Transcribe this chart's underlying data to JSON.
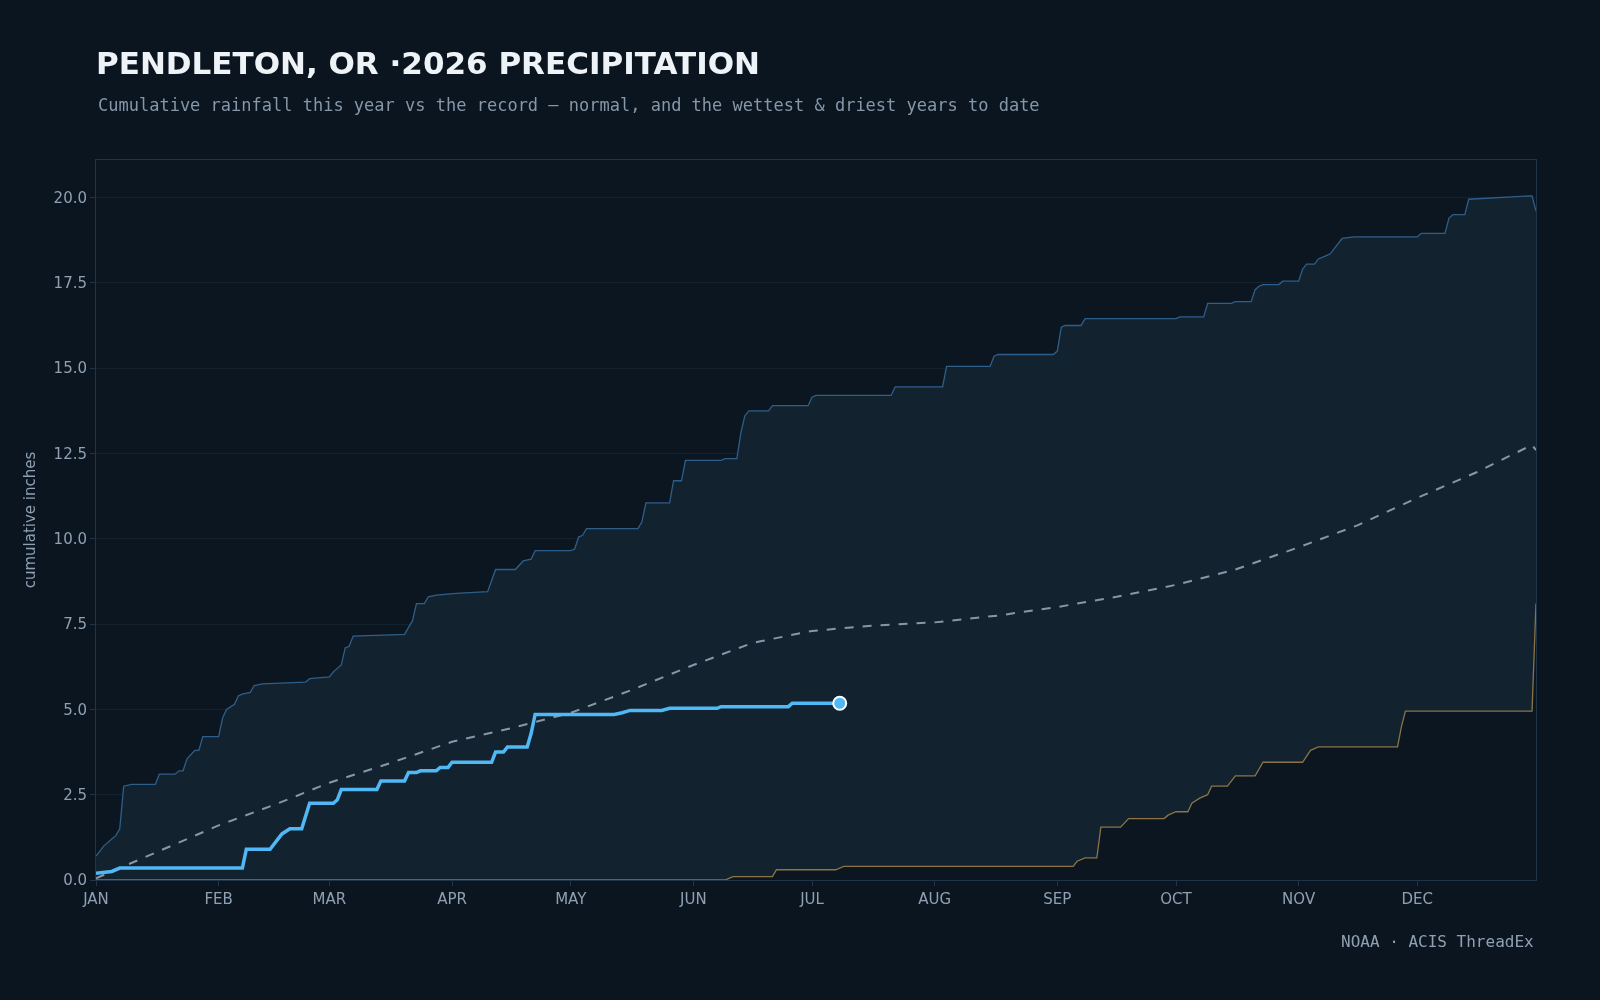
{
  "chart_data": {
    "type": "line",
    "title": "PENDLETON, OR ·2026 PRECIPITATION",
    "subtitle": "Cumulative rainfall this year vs the record — normal, and the wettest & driest years to date",
    "ylabel": "cumulative inches",
    "annotations": [
      "NOAA · ACIS ThreadEx"
    ],
    "xlim": [
      "2026-01-01",
      "2026-12-31"
    ],
    "xticks": [
      {
        "value": "2026-01-01",
        "label": "JAN"
      },
      {
        "value": "2026-02-01",
        "label": "FEB"
      },
      {
        "value": "2026-03-01",
        "label": "MAR"
      },
      {
        "value": "2026-04-01",
        "label": "APR"
      },
      {
        "value": "2026-05-01",
        "label": "MAY"
      },
      {
        "value": "2026-06-01",
        "label": "JUN"
      },
      {
        "value": "2026-07-01",
        "label": "JUL"
      },
      {
        "value": "2026-08-01",
        "label": "AUG"
      },
      {
        "value": "2026-09-01",
        "label": "SEP"
      },
      {
        "value": "2026-10-01",
        "label": "OCT"
      },
      {
        "value": "2026-11-01",
        "label": "NOV"
      },
      {
        "value": "2026-12-01",
        "label": "DEC"
      }
    ],
    "ylim": [
      0,
      21.1
    ],
    "yticks": [
      {
        "value": 0,
        "label": "0.0"
      },
      {
        "value": 2.5,
        "label": "2.5"
      },
      {
        "value": 5,
        "label": "5.0"
      },
      {
        "value": 7.5,
        "label": "7.5"
      },
      {
        "value": 10,
        "label": "10.0"
      },
      {
        "value": 12.5,
        "label": "12.5"
      },
      {
        "value": 15,
        "label": "15.0"
      },
      {
        "value": 17.5,
        "label": "17.5"
      },
      {
        "value": 20,
        "label": "20.0"
      }
    ],
    "grid": "y",
    "series": [
      {
        "type": "area",
        "color": "#8a7448",
        "line_style": "solid",
        "x": [
          "2026-01-01",
          "2026-06-09",
          "2026-06-10",
          "2026-06-11",
          "2026-06-21",
          "2026-06-22",
          "2026-07-07",
          "2026-07-09",
          "2026-09-05",
          "2026-09-06",
          "2026-09-08",
          "2026-09-11",
          "2026-09-12",
          "2026-09-17",
          "2026-09-19",
          "2026-09-28",
          "2026-09-29",
          "2026-10-01",
          "2026-10-04",
          "2026-10-05",
          "2026-10-07",
          "2026-10-09",
          "2026-10-10",
          "2026-10-14",
          "2026-10-16",
          "2026-10-21",
          "2026-10-23",
          "2026-11-02",
          "2026-11-04",
          "2026-11-06",
          "2026-11-26",
          "2026-11-27",
          "2026-11-28",
          "2026-12-30",
          "2026-12-31"
        ],
        "values": [
          0,
          0,
          0.05,
          0.1,
          0.1,
          0.3,
          0.3,
          0.4,
          0.4,
          0.55,
          0.65,
          0.65,
          1.55,
          1.55,
          1.8,
          1.8,
          1.9,
          2.0,
          2.0,
          2.25,
          2.4,
          2.5,
          2.75,
          2.75,
          3.05,
          3.05,
          3.45,
          3.45,
          3.8,
          3.9,
          3.9,
          4.5,
          4.95,
          4.95,
          8.1
        ]
      },
      {
        "type": "area",
        "color": "#2e5f8a",
        "line_style": "solid",
        "x": [
          "2026-01-01",
          "2026-01-03",
          "2026-01-05",
          "2026-01-06",
          "2026-01-07",
          "2026-01-08",
          "2026-01-10",
          "2026-01-16",
          "2026-01-17",
          "2026-01-21",
          "2026-01-22",
          "2026-01-23",
          "2026-01-24",
          "2026-01-26",
          "2026-01-27",
          "2026-01-28",
          "2026-02-01",
          "2026-02-02",
          "2026-02-03",
          "2026-02-05",
          "2026-02-06",
          "2026-02-07",
          "2026-02-09",
          "2026-02-10",
          "2026-02-12",
          "2026-02-23",
          "2026-02-24",
          "2026-03-01",
          "2026-03-02",
          "2026-03-04",
          "2026-03-05",
          "2026-03-06",
          "2026-03-07",
          "2026-03-20",
          "2026-03-22",
          "2026-03-23",
          "2026-03-25",
          "2026-03-26",
          "2026-03-28",
          "2026-04-02",
          "2026-04-10",
          "2026-04-12",
          "2026-04-17",
          "2026-04-19",
          "2026-04-21",
          "2026-04-22",
          "2026-05-01",
          "2026-05-02",
          "2026-05-03",
          "2026-05-04",
          "2026-05-05",
          "2026-05-18",
          "2026-05-19",
          "2026-05-20",
          "2026-05-26",
          "2026-05-27",
          "2026-05-29",
          "2026-05-30",
          "2026-06-08",
          "2026-06-09",
          "2026-06-12",
          "2026-06-13",
          "2026-06-14",
          "2026-06-15",
          "2026-06-20",
          "2026-06-21",
          "2026-06-30",
          "2026-07-01",
          "2026-07-02",
          "2026-07-21",
          "2026-07-22",
          "2026-08-03",
          "2026-08-04",
          "2026-08-15",
          "2026-08-16",
          "2026-08-17",
          "2026-08-31",
          "2026-09-01",
          "2026-09-02",
          "2026-09-03",
          "2026-09-07",
          "2026-09-08",
          "2026-10-01",
          "2026-10-02",
          "2026-10-08",
          "2026-10-09",
          "2026-10-15",
          "2026-10-16",
          "2026-10-20",
          "2026-10-21",
          "2026-10-22",
          "2026-10-23",
          "2026-10-27",
          "2026-10-28",
          "2026-11-01",
          "2026-11-02",
          "2026-11-03",
          "2026-11-05",
          "2026-11-06",
          "2026-11-08",
          "2026-11-09",
          "2026-11-10",
          "2026-11-12",
          "2026-11-15",
          "2026-12-01",
          "2026-12-02",
          "2026-12-08",
          "2026-12-09",
          "2026-12-10",
          "2026-12-13",
          "2026-12-14",
          "2026-12-30",
          "2026-12-31"
        ],
        "values": [
          0.7,
          1.0,
          1.2,
          1.3,
          1.5,
          2.75,
          2.8,
          2.8,
          3.1,
          3.1,
          3.2,
          3.2,
          3.55,
          3.8,
          3.8,
          4.2,
          4.2,
          4.75,
          5.0,
          5.15,
          5.4,
          5.45,
          5.5,
          5.7,
          5.75,
          5.8,
          5.9,
          5.95,
          6.1,
          6.3,
          6.8,
          6.85,
          7.15,
          7.2,
          7.6,
          8.1,
          8.1,
          8.3,
          8.35,
          8.4,
          8.45,
          9.1,
          9.1,
          9.35,
          9.4,
          9.65,
          9.65,
          9.7,
          10.05,
          10.1,
          10.3,
          10.3,
          10.5,
          11.05,
          11.05,
          11.7,
          11.7,
          12.3,
          12.3,
          12.35,
          12.35,
          13.1,
          13.6,
          13.75,
          13.75,
          13.9,
          13.9,
          14.15,
          14.2,
          14.2,
          14.45,
          14.45,
          15.05,
          15.05,
          15.35,
          15.4,
          15.4,
          15.5,
          16.2,
          16.25,
          16.25,
          16.45,
          16.45,
          16.5,
          16.5,
          16.9,
          16.9,
          16.95,
          16.95,
          17.3,
          17.4,
          17.45,
          17.45,
          17.55,
          17.55,
          17.9,
          18.05,
          18.05,
          18.2,
          18.3,
          18.35,
          18.5,
          18.8,
          18.85,
          18.85,
          18.95,
          18.95,
          19.4,
          19.5,
          19.5,
          19.95,
          20.05,
          19.6
        ]
      },
      {
        "color": "#8797a8",
        "line_style": "dashed",
        "x": [
          "2026-01-01",
          "2026-01-16",
          "2026-02-01",
          "2026-02-15",
          "2026-03-01",
          "2026-03-17",
          "2026-04-01",
          "2026-04-16",
          "2026-05-01",
          "2026-05-16",
          "2026-06-01",
          "2026-06-16",
          "2026-07-01",
          "2026-07-16",
          "2026-08-01",
          "2026-08-17",
          "2026-09-01",
          "2026-09-16",
          "2026-10-01",
          "2026-10-16",
          "2026-11-01",
          "2026-11-16",
          "2026-12-01",
          "2026-12-16",
          "2026-12-30",
          "2026-12-31"
        ],
        "values": [
          0.05,
          0.8,
          1.6,
          2.2,
          2.85,
          3.45,
          4.05,
          4.45,
          4.9,
          5.55,
          6.3,
          6.95,
          7.3,
          7.45,
          7.55,
          7.75,
          8.0,
          8.3,
          8.65,
          9.1,
          9.75,
          10.4,
          11.2,
          11.95,
          12.75,
          12.6
        ]
      },
      {
        "color": "#4fb8f5",
        "line_style": "solid",
        "x": [
          "2026-01-01",
          "2026-01-05",
          "2026-01-07",
          "2026-02-07",
          "2026-02-08",
          "2026-02-14",
          "2026-02-17",
          "2026-02-19",
          "2026-02-22",
          "2026-02-24",
          "2026-03-02",
          "2026-03-03",
          "2026-03-04",
          "2026-03-13",
          "2026-03-14",
          "2026-03-20",
          "2026-03-21",
          "2026-03-23",
          "2026-03-24",
          "2026-03-28",
          "2026-03-29",
          "2026-03-31",
          "2026-04-01",
          "2026-04-11",
          "2026-04-12",
          "2026-04-14",
          "2026-04-15",
          "2026-04-20",
          "2026-04-21",
          "2026-04-22",
          "2026-05-12",
          "2026-05-14",
          "2026-05-16",
          "2026-05-24",
          "2026-05-26",
          "2026-06-07",
          "2026-06-08",
          "2026-06-25",
          "2026-06-26",
          "2026-07-08"
        ],
        "values": [
          0.2,
          0.25,
          0.35,
          0.35,
          0.9,
          0.9,
          1.35,
          1.5,
          1.5,
          2.25,
          2.25,
          2.35,
          2.65,
          2.65,
          2.9,
          2.9,
          3.15,
          3.15,
          3.2,
          3.2,
          3.3,
          3.3,
          3.45,
          3.45,
          3.75,
          3.75,
          3.9,
          3.9,
          4.3,
          4.85,
          4.85,
          4.9,
          4.97,
          4.97,
          5.03,
          5.03,
          5.08,
          5.08,
          5.18,
          5.18
        ]
      },
      {
        "type": "scatter",
        "color": "#4fb8f5",
        "marker": "circle",
        "x": [
          "2026-07-08"
        ],
        "values": [
          5.18
        ]
      }
    ]
  }
}
